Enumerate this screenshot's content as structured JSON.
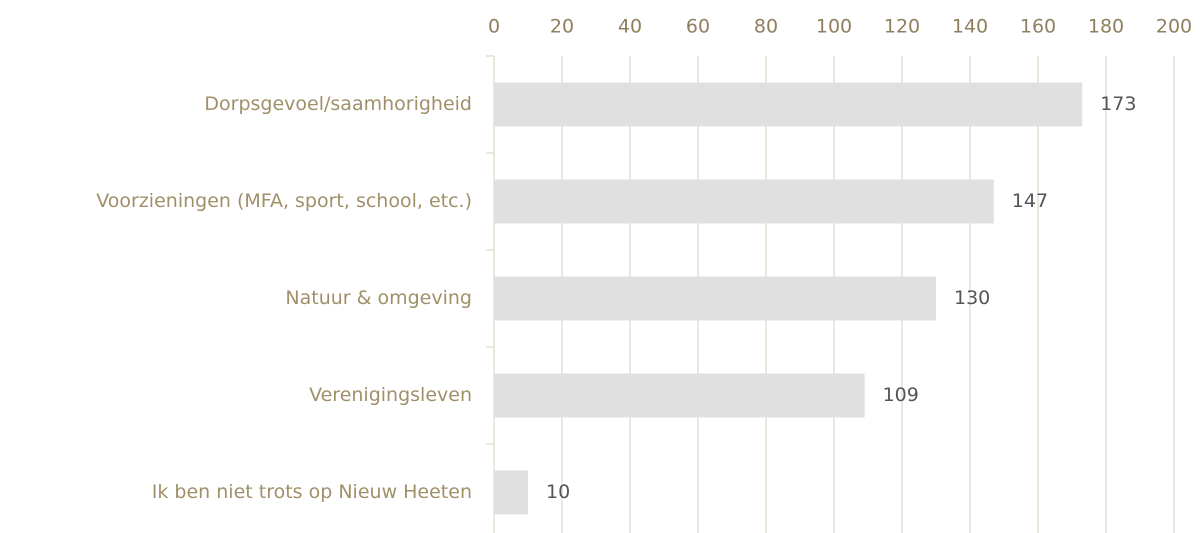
{
  "chart_data": {
    "type": "bar",
    "orientation": "horizontal",
    "categories": [
      "Dorpsgevoel/saamhorigheid",
      "Voorzieningen (MFA, sport, school, etc.)",
      "Natuur & omgeving",
      "Verenigingsleven",
      "Ik ben niet trots op Nieuw Heeten"
    ],
    "values": [
      173,
      147,
      130,
      109,
      10
    ],
    "color": "#e0e0e0",
    "xlim": [
      0,
      200
    ],
    "xticks": [
      0,
      20,
      40,
      60,
      80,
      100,
      120,
      140,
      160,
      180,
      200
    ],
    "grid": true
  }
}
